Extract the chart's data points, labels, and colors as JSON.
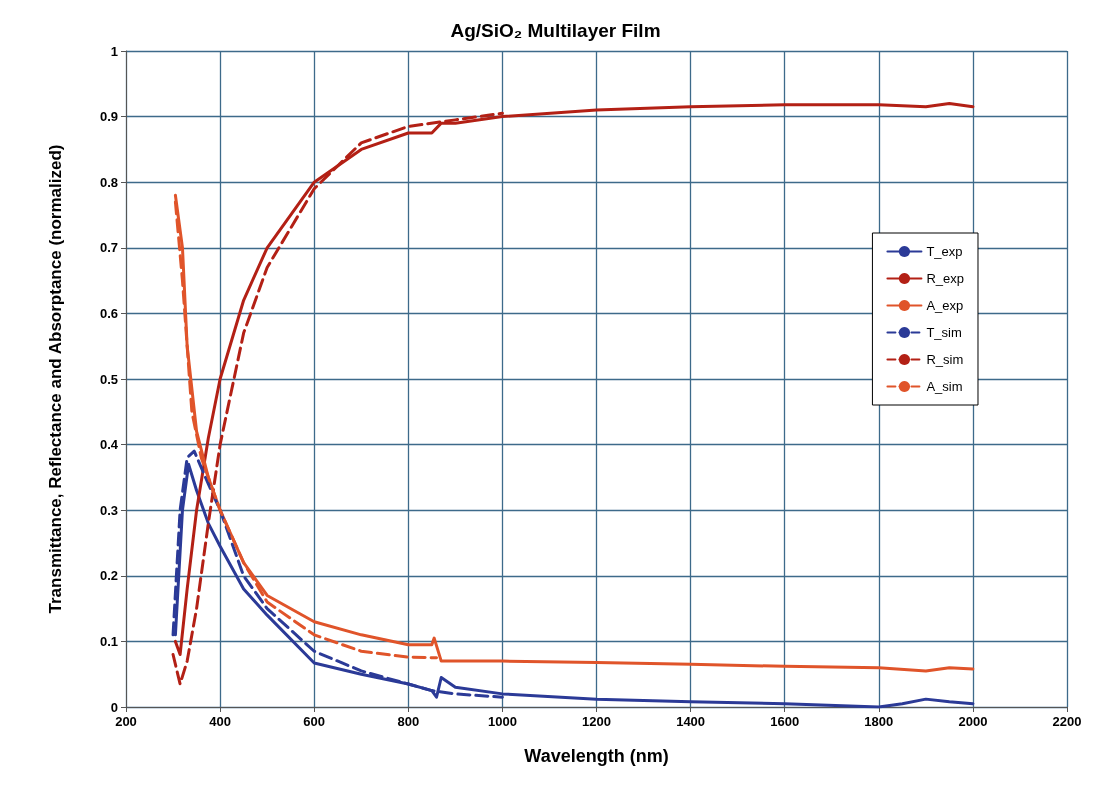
{
  "chart_data": {
    "type": "line",
    "title": "Ag/SiO₂ Multilayer Film",
    "xlabel": "Wavelength (nm)",
    "ylabel": "Transmittance, Reflectance and Absorptance (normalized)",
    "xlim": [
      200,
      2200
    ],
    "xticks": [
      200,
      400,
      600,
      800,
      1000,
      1200,
      1400,
      1600,
      1800,
      2000,
      2200
    ],
    "ylim": [
      0,
      1
    ],
    "yticks": [
      0,
      0.1,
      0.2,
      0.3,
      0.4,
      0.5,
      0.6,
      0.7,
      0.8,
      0.9,
      1
    ],
    "grid": true,
    "legend": "right",
    "marker": "none",
    "series": [
      {
        "name": "T_exp",
        "color": "#2b3a97",
        "line_style": "solid",
        "x": [
          305,
          320,
          333,
          350,
          375,
          400,
          450,
          500,
          600,
          700,
          800,
          850,
          860,
          870,
          900,
          1000,
          1200,
          1400,
          1600,
          1800,
          1850,
          1900,
          1950,
          2000
        ],
        "values": [
          0.11,
          0.3,
          0.37,
          0.33,
          0.28,
          0.245,
          0.18,
          0.14,
          0.067,
          0.05,
          0.035,
          0.025,
          0.015,
          0.045,
          0.03,
          0.02,
          0.012,
          0.008,
          0.005,
          0.0,
          0.005,
          0.012,
          0.008,
          0.005
        ]
      },
      {
        "name": "R_exp",
        "color": "#b32015",
        "line_style": "solid",
        "x": [
          305,
          315,
          330,
          350,
          375,
          400,
          450,
          500,
          600,
          700,
          800,
          850,
          870,
          900,
          1000,
          1200,
          1400,
          1600,
          1800,
          1900,
          1950,
          2000
        ],
        "values": [
          0.1,
          0.08,
          0.18,
          0.3,
          0.41,
          0.5,
          0.62,
          0.7,
          0.8,
          0.85,
          0.875,
          0.875,
          0.89,
          0.89,
          0.9,
          0.91,
          0.915,
          0.918,
          0.918,
          0.915,
          0.92,
          0.915
        ]
      },
      {
        "name": "A_exp",
        "color": "#e0542a",
        "line_style": "solid",
        "x": [
          305,
          320,
          330,
          350,
          375,
          400,
          450,
          500,
          600,
          700,
          800,
          850,
          855,
          870,
          900,
          1000,
          1200,
          1400,
          1600,
          1800,
          1900,
          1950,
          2000
        ],
        "values": [
          0.78,
          0.7,
          0.55,
          0.42,
          0.35,
          0.3,
          0.22,
          0.17,
          0.13,
          0.11,
          0.095,
          0.095,
          0.105,
          0.07,
          0.07,
          0.07,
          0.068,
          0.065,
          0.062,
          0.06,
          0.055,
          0.06,
          0.058
        ]
      },
      {
        "name": "T_sim",
        "color": "#2b3a97",
        "line_style": "dashed",
        "x": [
          300,
          315,
          330,
          345,
          375,
          400,
          450,
          500,
          600,
          700,
          800,
          850,
          900,
          1000
        ],
        "values": [
          0.11,
          0.3,
          0.38,
          0.39,
          0.34,
          0.3,
          0.2,
          0.15,
          0.085,
          0.055,
          0.035,
          0.025,
          0.02,
          0.015
        ]
      },
      {
        "name": "R_sim",
        "color": "#b32015",
        "line_style": "dashed",
        "x": [
          300,
          315,
          330,
          350,
          375,
          400,
          450,
          500,
          600,
          700,
          800,
          900,
          1000
        ],
        "values": [
          0.08,
          0.035,
          0.07,
          0.15,
          0.28,
          0.4,
          0.57,
          0.67,
          0.79,
          0.86,
          0.885,
          0.895,
          0.905
        ]
      },
      {
        "name": "A_sim",
        "color": "#e0542a",
        "line_style": "dashed",
        "x": [
          305,
          320,
          340,
          360,
          400,
          450,
          500,
          600,
          700,
          800,
          860
        ],
        "values": [
          0.77,
          0.65,
          0.45,
          0.38,
          0.3,
          0.22,
          0.16,
          0.11,
          0.085,
          0.076,
          0.075
        ]
      }
    ]
  }
}
